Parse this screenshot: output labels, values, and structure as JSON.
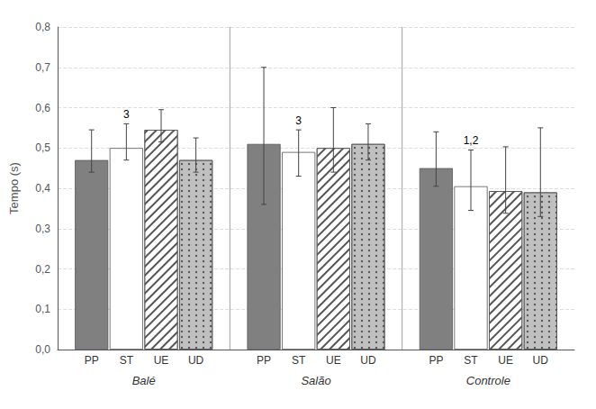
{
  "chart_data": {
    "type": "bar",
    "ylabel": "Tempo (s)",
    "groups": [
      "Balé",
      "Salão",
      "Controle"
    ],
    "series": [
      {
        "name": "PP",
        "color": "#808080",
        "values": [
          0.47,
          0.51,
          0.45
        ],
        "error_low": [
          0.03,
          0.15,
          0.045
        ],
        "error_high": [
          0.075,
          0.19,
          0.09
        ]
      },
      {
        "name": "ST",
        "color": "#ffffff",
        "values": [
          0.5,
          0.49,
          0.405
        ],
        "error_low": [
          0.03,
          0.06,
          0.06
        ],
        "error_high": [
          0.06,
          0.055,
          0.09
        ]
      },
      {
        "name": "UE",
        "color": "#ffffff",
        "values": [
          0.545,
          0.5,
          0.393
        ],
        "error_low": [
          0.03,
          0.06,
          0.055
        ],
        "error_high": [
          0.05,
          0.1,
          0.11
        ]
      },
      {
        "name": "UD",
        "color": "#c0c0c0",
        "values": [
          0.47,
          0.51,
          0.39
        ],
        "error_low": [
          0.03,
          0.04,
          0.06
        ],
        "error_high": [
          0.055,
          0.05,
          0.16
        ]
      }
    ],
    "annotations": [
      {
        "group": "Balé",
        "series": "ST",
        "text": "3"
      },
      {
        "group": "Salão",
        "series": "ST",
        "text": "3"
      },
      {
        "group": "Controle",
        "series": "ST",
        "text": "1,2"
      }
    ],
    "ylim": [
      0.0,
      0.8
    ],
    "yticks": [
      {
        "value": 0.0,
        "label": "0,0"
      },
      {
        "value": 0.1,
        "label": "0,1"
      },
      {
        "value": 0.2,
        "label": "0,2"
      },
      {
        "value": 0.3,
        "label": "0,3"
      },
      {
        "value": 0.4,
        "label": "0,4"
      },
      {
        "value": 0.5,
        "label": "0,5"
      },
      {
        "value": 0.6,
        "label": "0,6"
      },
      {
        "value": 0.7,
        "label": "0,7"
      },
      {
        "value": 0.8,
        "label": "0,8"
      }
    ],
    "grid": true
  }
}
